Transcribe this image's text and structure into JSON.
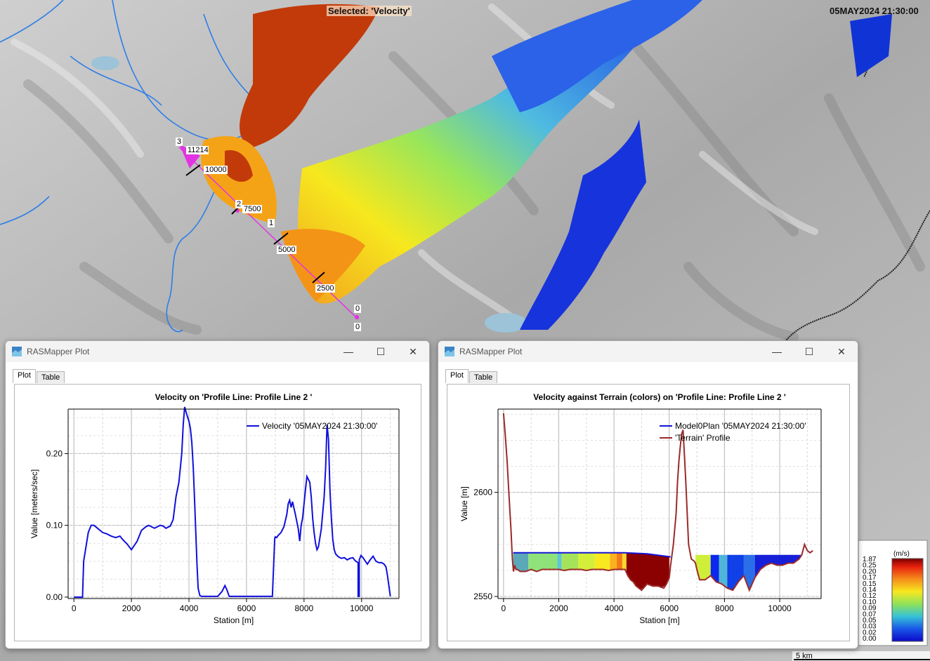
{
  "map": {
    "selected_label": "Selected: 'Velocity'",
    "timestamp": "05MAY2024 21:30:00",
    "profile_markers": [
      {
        "label": "3"
      },
      {
        "label": "11214"
      },
      {
        "label": "10000"
      },
      {
        "label": "2"
      },
      {
        "label": "7500"
      },
      {
        "label": "1"
      },
      {
        "label": "5000"
      },
      {
        "label": "2500"
      },
      {
        "label": "0"
      },
      {
        "label": "0"
      }
    ],
    "legend": {
      "unit": "(m/s)",
      "values": [
        "1.87",
        "0.25",
        "0.20",
        "0.17",
        "0.15",
        "0.14",
        "0.12",
        "0.10",
        "0.09",
        "0.07",
        "0.05",
        "0.03",
        "0.02",
        "0.00"
      ]
    },
    "scale_bar": "5 km"
  },
  "windows": [
    {
      "title": "RASMapper Plot",
      "tabs": [
        "Plot",
        "Table"
      ],
      "chart_title": "Velocity on 'Profile Line: Profile Line 2 '"
    },
    {
      "title": "RASMapper Plot",
      "tabs": [
        "Plot",
        "Table"
      ],
      "chart_title": "Velocity against Terrain (colors) on 'Profile Line: Profile Line 2 '"
    }
  ],
  "chart_data": [
    {
      "type": "line",
      "title": "Velocity on 'Profile Line: Profile Line 2 '",
      "xlabel": "Station [m]",
      "ylabel": "Value [meters/sec]",
      "xlim": [
        -200,
        11300
      ],
      "ylim": [
        -0.002,
        0.262
      ],
      "xticks": [
        "0",
        "2000",
        "4000",
        "6000",
        "8000",
        "10000"
      ],
      "yticks": [
        "0.00",
        "0.10",
        "0.20"
      ],
      "legend": "top-right",
      "color": "#1010dd",
      "series": [
        {
          "name": "Velocity '05MAY2024 21:30:00'",
          "x": [
            0,
            300,
            340,
            420,
            500,
            600,
            700,
            850,
            1000,
            1150,
            1300,
            1450,
            1600,
            1700,
            1850,
            2000,
            2200,
            2350,
            2500,
            2600,
            2700,
            2800,
            2900,
            3000,
            3100,
            3200,
            3350,
            3450,
            3550,
            3650,
            3750,
            3800,
            3850,
            3920,
            4000,
            4050,
            4100,
            4150,
            4200,
            4280,
            4320,
            4380,
            4450,
            5000,
            5150,
            5250,
            5320,
            5400,
            6900,
            6980,
            7000,
            7050,
            7100,
            7200,
            7300,
            7400,
            7450,
            7500,
            7550,
            7600,
            7700,
            7800,
            7850,
            7900,
            7950,
            8000,
            8050,
            8100,
            8200,
            8250,
            8300,
            8350,
            8400,
            8450,
            8500,
            8600,
            8700,
            8750,
            8800,
            8850,
            8900,
            8950,
            9000,
            9050,
            9100,
            9150,
            9200,
            9300,
            9400,
            9500,
            9600,
            9700,
            9750,
            9800,
            9880,
            9880,
            9920,
            9920,
            9980,
            10050,
            10200,
            10300,
            10400,
            10500,
            10600,
            10700,
            10780,
            10850,
            10900,
            11000
          ],
          "values": [
            0,
            0,
            0.05,
            0.07,
            0.09,
            0.1,
            0.1,
            0.095,
            0.09,
            0.088,
            0.085,
            0.083,
            0.085,
            0.08,
            0.074,
            0.066,
            0.078,
            0.093,
            0.098,
            0.1,
            0.098,
            0.096,
            0.098,
            0.1,
            0.099,
            0.096,
            0.099,
            0.108,
            0.14,
            0.16,
            0.2,
            0.24,
            0.265,
            0.255,
            0.245,
            0.235,
            0.215,
            0.18,
            0.13,
            0.045,
            0.012,
            0.002,
            0.001,
            0.001,
            0.008,
            0.016,
            0.01,
            0.001,
            0.001,
            0.081,
            0.084,
            0.083,
            0.086,
            0.09,
            0.098,
            0.115,
            0.13,
            0.135,
            0.125,
            0.133,
            0.115,
            0.095,
            0.078,
            0.1,
            0.11,
            0.13,
            0.15,
            0.168,
            0.16,
            0.14,
            0.11,
            0.09,
            0.075,
            0.066,
            0.07,
            0.095,
            0.14,
            0.18,
            0.24,
            0.22,
            0.15,
            0.11,
            0.08,
            0.066,
            0.06,
            0.058,
            0.056,
            0.054,
            0.055,
            0.052,
            0.054,
            0.055,
            0.052,
            0.05,
            0.048,
            0.001,
            0.001,
            0.052,
            0.058,
            0.055,
            0.046,
            0.052,
            0.057,
            0.05,
            0.048,
            0.048,
            0.046,
            0.042,
            0.03,
            0.001
          ]
        }
      ]
    },
    {
      "type": "line",
      "title": "Velocity against Terrain (colors) on 'Profile Line: Profile Line 2 '",
      "xlabel": "Station [m]",
      "ylabel": "Value [m]",
      "xlim": [
        -200,
        11500
      ],
      "ylim": [
        2549,
        2640
      ],
      "xticks": [
        "0",
        "2000",
        "4000",
        "6000",
        "8000",
        "10000"
      ],
      "yticks": [
        "2550",
        "2600"
      ],
      "legend": "top-right",
      "series": [
        {
          "name": "Model0Plan '05MAY2024 21:30:00'",
          "color": "#1414d8",
          "x": [
            350,
            4400,
            5200,
            6050
          ],
          "values": [
            2571,
            2571,
            2570.5,
            2569
          ]
        },
        {
          "name": "'Terrain' Profile",
          "color": "#9c2a2a",
          "x": [
            0,
            60,
            130,
            200,
            270,
            320,
            360,
            400,
            450,
            500,
            600,
            800,
            1000,
            1200,
            1400,
            1600,
            1800,
            2000,
            2200,
            2400,
            2600,
            2800,
            3000,
            3200,
            3400,
            3600,
            3800,
            4000,
            4200,
            4400,
            4500,
            4600,
            4700,
            4800,
            5000,
            5200,
            5400,
            5600,
            5800,
            5900,
            6000,
            6050,
            6150,
            6250,
            6300,
            6350,
            6400,
            6450,
            6500,
            6550,
            6600,
            6650,
            6700,
            6800,
            6900,
            6950,
            7000,
            7100,
            7300,
            7500,
            7700,
            7900,
            8100,
            8300,
            8500,
            8700,
            8900,
            9100,
            9300,
            9500,
            9700,
            9900,
            10100,
            10300,
            10500,
            10700,
            10800,
            10900,
            11000,
            11100,
            11200
          ],
          "values": [
            2638,
            2628,
            2615,
            2598,
            2582,
            2568,
            2562,
            2565,
            2563,
            2563,
            2562,
            2562,
            2563,
            2562,
            2563,
            2563,
            2563,
            2563,
            2562.5,
            2563,
            2563,
            2563,
            2562.5,
            2563,
            2563,
            2563,
            2562.5,
            2563,
            2563,
            2563,
            2560,
            2558,
            2557,
            2555,
            2553,
            2556,
            2555,
            2555,
            2554,
            2556,
            2559,
            2565,
            2575,
            2590,
            2605,
            2615,
            2622,
            2628,
            2630,
            2618,
            2605,
            2590,
            2575,
            2568,
            2567,
            2566,
            2563,
            2558,
            2558,
            2560,
            2557,
            2556,
            2554,
            2553,
            2557,
            2560,
            2553,
            2559,
            2563,
            2565,
            2566,
            2565,
            2565,
            2566,
            2566,
            2568,
            2570,
            2575,
            2572,
            2571,
            2572
          ]
        }
      ],
      "color_bands": [
        {
          "x0": 350,
          "x1": 900,
          "color": "#5ba8b8"
        },
        {
          "x0": 900,
          "x1": 1950,
          "color": "#8fe27a"
        },
        {
          "x0": 1950,
          "x1": 2100,
          "color": "#5fc6d8"
        },
        {
          "x0": 2100,
          "x1": 2700,
          "color": "#a5e45a"
        },
        {
          "x0": 2700,
          "x1": 3300,
          "color": "#d3ef3c"
        },
        {
          "x0": 3300,
          "x1": 3850,
          "color": "#f7e81f"
        },
        {
          "x0": 3850,
          "x1": 4100,
          "color": "#fab21c"
        },
        {
          "x0": 4100,
          "x1": 4300,
          "color": "#f47a17"
        },
        {
          "x0": 4300,
          "x1": 4450,
          "color": "#f7d82a"
        },
        {
          "x0": 4450,
          "x1": 6000,
          "color": "#8b0000"
        },
        {
          "x0": 6950,
          "x1": 7500,
          "color": "#cfee3a"
        },
        {
          "x0": 7500,
          "x1": 7800,
          "color": "#0c28ee"
        },
        {
          "x0": 7800,
          "x1": 8100,
          "color": "#50b6d8"
        },
        {
          "x0": 8100,
          "x1": 8700,
          "color": "#1040e8"
        },
        {
          "x0": 8700,
          "x1": 9100,
          "color": "#2b6fe8"
        },
        {
          "x0": 9100,
          "x1": 10800,
          "color": "#1520d8"
        }
      ]
    }
  ]
}
